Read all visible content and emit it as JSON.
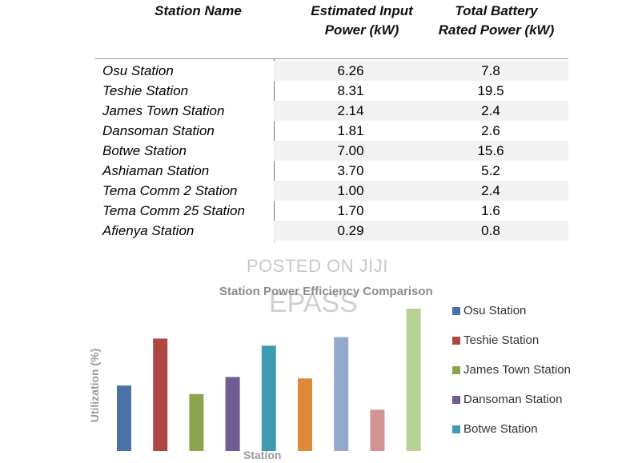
{
  "table": {
    "headers": {
      "name": "Station Name",
      "input_line1": "Estimated Input",
      "input_line2": "Power (kW)",
      "battery_line1": "Total Battery",
      "battery_line2": "Rated Power (kW)"
    },
    "rows": [
      {
        "name": "Osu Station",
        "input": "6.26",
        "battery": "7.8"
      },
      {
        "name": "Teshie Station",
        "input": "8.31",
        "battery": "19.5"
      },
      {
        "name": "James Town Station",
        "input": "2.14",
        "battery": "2.4"
      },
      {
        "name": "Dansoman Station",
        "input": "1.81",
        "battery": "2.6"
      },
      {
        "name": "Botwe Station",
        "input": "7.00",
        "battery": "15.6"
      },
      {
        "name": "Ashiaman Station",
        "input": "3.70",
        "battery": "5.2"
      },
      {
        "name": "Tema Comm 2 Station",
        "input": "1.00",
        "battery": "2.4"
      },
      {
        "name": "Tema Comm 25 Station",
        "input": "1.70",
        "battery": "1.6"
      },
      {
        "name": "Afienya Station",
        "input": "0.29",
        "battery": "0.8"
      }
    ]
  },
  "watermark": {
    "line1": "POSTED ON JIJI",
    "line2": "EPASS"
  },
  "chart_data": {
    "type": "bar",
    "title": "Station Power Efficiency Comparison",
    "xlabel": "Station",
    "ylabel": "Utilization (%)",
    "categories": [
      "Osu Station",
      "Teshie Station",
      "James Town Station",
      "Dansoman Station",
      "Botwe Station",
      "Ashiaman Station",
      "Tema Comm 2 Station",
      "Tema Comm 25 Station",
      "Afienya Station"
    ],
    "values": [
      46,
      79,
      40,
      52,
      74,
      51,
      80,
      29,
      100
    ],
    "colors": [
      "#4a72a8",
      "#ae4743",
      "#8aa54b",
      "#725a94",
      "#3f9cb0",
      "#df8a3a",
      "#93a9ce",
      "#d59293",
      "#b7d095"
    ],
    "ylim": [
      0,
      100
    ],
    "grid": false,
    "legend": {
      "position": "right",
      "entries": [
        "Osu Station",
        "Teshie Station",
        "James Town Station",
        "Dansoman Station",
        "Botwe Station"
      ]
    }
  }
}
